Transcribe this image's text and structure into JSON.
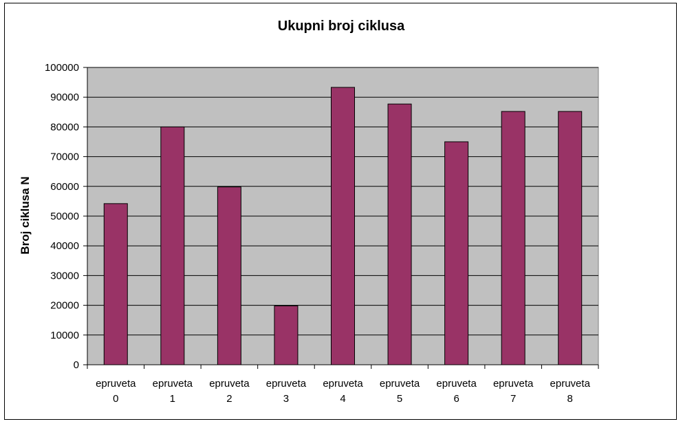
{
  "chart_data": {
    "type": "bar",
    "title": "Ukupni broj ciklusa",
    "ylabel": "Broj ciklusa  N",
    "xlabel": "",
    "categories": [
      [
        "epruveta",
        "0"
      ],
      [
        "epruveta",
        "1"
      ],
      [
        "epruveta",
        "2"
      ],
      [
        "epruveta",
        "3"
      ],
      [
        "epruveta",
        "4"
      ],
      [
        "epruveta",
        "5"
      ],
      [
        "epruveta",
        "6"
      ],
      [
        "epruveta",
        "7"
      ],
      [
        "epruveta",
        "8"
      ]
    ],
    "values": [
      54200,
      80000,
      59800,
      19800,
      93300,
      87700,
      75000,
      85200,
      85200
    ],
    "ylim": [
      0,
      100000
    ],
    "yticks": [
      "0",
      "10000",
      "20000",
      "30000",
      "40000",
      "50000",
      "60000",
      "70000",
      "80000",
      "90000",
      "100000"
    ],
    "grid": true,
    "legend": "none",
    "colors": {
      "bar": "#993366",
      "plot_background": "#c0c0c0",
      "gridline": "#000000"
    }
  }
}
